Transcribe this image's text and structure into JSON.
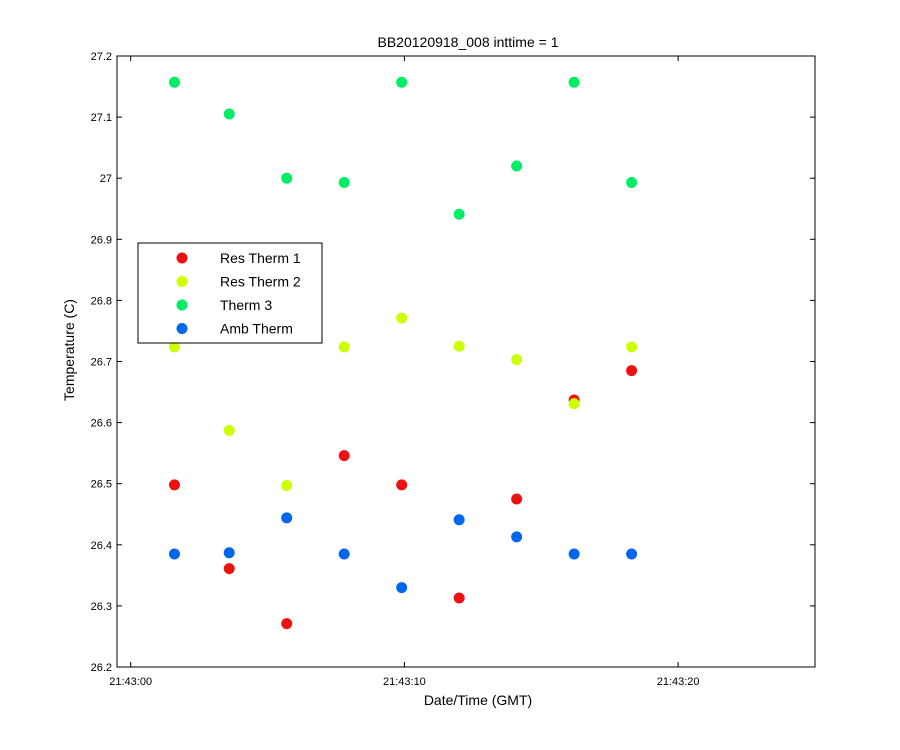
{
  "chart_data": {
    "type": "scatter",
    "title": "BB20120918_008 inttime = 1",
    "xlabel": "Date/Time (GMT)",
    "ylabel": "Temperature (C)",
    "xlim": [
      "21:43:00",
      "21:43:25"
    ],
    "ylim": [
      26.2,
      27.2
    ],
    "xticks": [
      "21:43:00",
      "21:43:10",
      "21:43:20"
    ],
    "yticks": [
      26.2,
      26.3,
      26.4,
      26.5,
      26.6,
      26.7,
      26.8,
      26.9,
      27.0,
      27.1,
      27.2
    ],
    "ytick_labels": [
      "26.2",
      "26.3",
      "26.4",
      "26.5",
      "26.6",
      "26.7",
      "26.8",
      "26.9",
      "27",
      "27.1",
      "27.2"
    ],
    "grid": false,
    "legend_position": "left",
    "x": [
      "21:43:01.6",
      "21:43:03.6",
      "21:43:05.7",
      "21:43:07.8",
      "21:43:09.9",
      "21:43:12.0",
      "21:43:14.1",
      "21:43:16.2",
      "21:43:18.3"
    ],
    "series": [
      {
        "name": "Res Therm 1",
        "color": "#ee1111",
        "values": [
          26.498,
          26.361,
          26.271,
          26.546,
          26.498,
          26.313,
          26.475,
          26.637,
          26.685
        ]
      },
      {
        "name": "Res Therm 2",
        "color": "#ccff00",
        "values": [
          26.724,
          26.587,
          26.497,
          26.724,
          26.771,
          26.725,
          26.703,
          26.631,
          26.724
        ]
      },
      {
        "name": "Therm 3",
        "color": "#00ee66",
        "values": [
          27.157,
          27.105,
          27.0,
          26.993,
          27.157,
          26.941,
          27.02,
          27.157,
          26.993
        ]
      },
      {
        "name": "Amb Therm",
        "color": "#0066ee",
        "values": [
          26.385,
          26.387,
          26.444,
          26.385,
          26.33,
          26.441,
          26.413,
          26.385,
          26.385
        ]
      }
    ]
  }
}
